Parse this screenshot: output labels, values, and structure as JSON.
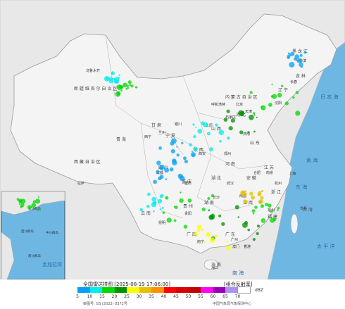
{
  "map": {
    "sea_labels": [
      "日 本 海",
      "黄 海",
      "东 海",
      "太 平 洋",
      "孟加拉湾",
      "南 海"
    ],
    "region_labels": [
      "黑 龙 江",
      "吉 林",
      "辽 宁",
      "内 蒙 古 自 治 区",
      "新 疆 维 吾 尔 自 治 区",
      "西 藏 自 治 区",
      "青 海",
      "甘 肃",
      "宁 夏",
      "陕 西",
      "山 西",
      "河 北",
      "山 东",
      "河 南",
      "江 苏",
      "安 徽",
      "湖 北",
      "湖 南",
      "江 西",
      "浙 江",
      "福 建",
      "四 川",
      "重 庆",
      "贵 州",
      "云 南",
      "广 西",
      "广 东",
      "海 南",
      "台 湾"
    ],
    "city_labels": [
      "乌鲁木齐",
      "拉萨",
      "西宁",
      "兰州",
      "银川",
      "呼和浩特",
      "北京",
      "天津",
      "石家庄",
      "太原",
      "济南",
      "郑州",
      "西安",
      "成都",
      "重庆",
      "贵阳",
      "昆明",
      "南宁",
      "广州",
      "香港",
      "澳门",
      "长沙",
      "南昌",
      "福州",
      "台北",
      "杭州",
      "上海",
      "南京",
      "合肥",
      "武汉",
      "沈阳",
      "长春",
      "哈尔滨",
      "海口"
    ],
    "inset_island_labels": [
      "东沙群岛",
      "西沙群岛",
      "中沙群岛",
      "南沙群岛"
    ]
  },
  "legend": {
    "title": "全国雷达拼图 [2025-08-19 17:06:00]",
    "product": "[组合反射率]",
    "unit": "dBZ",
    "ticks": [
      "5",
      "10",
      "15",
      "20",
      "25",
      "30",
      "35",
      "40",
      "45",
      "50",
      "55",
      "60",
      "65",
      "70"
    ],
    "colors": [
      "#01a0f6",
      "#00ecec",
      "#00d800",
      "#019000",
      "#ffff00",
      "#e7c000",
      "#ff9000",
      "#ff0000",
      "#d60000",
      "#c00000",
      "#ff00f0",
      "#9600b4",
      "#ad90f0",
      "#ffffff"
    ],
    "approval": "审图号: GS (2022) 0372号",
    "source": "中国气象局气象探测中心"
  }
}
